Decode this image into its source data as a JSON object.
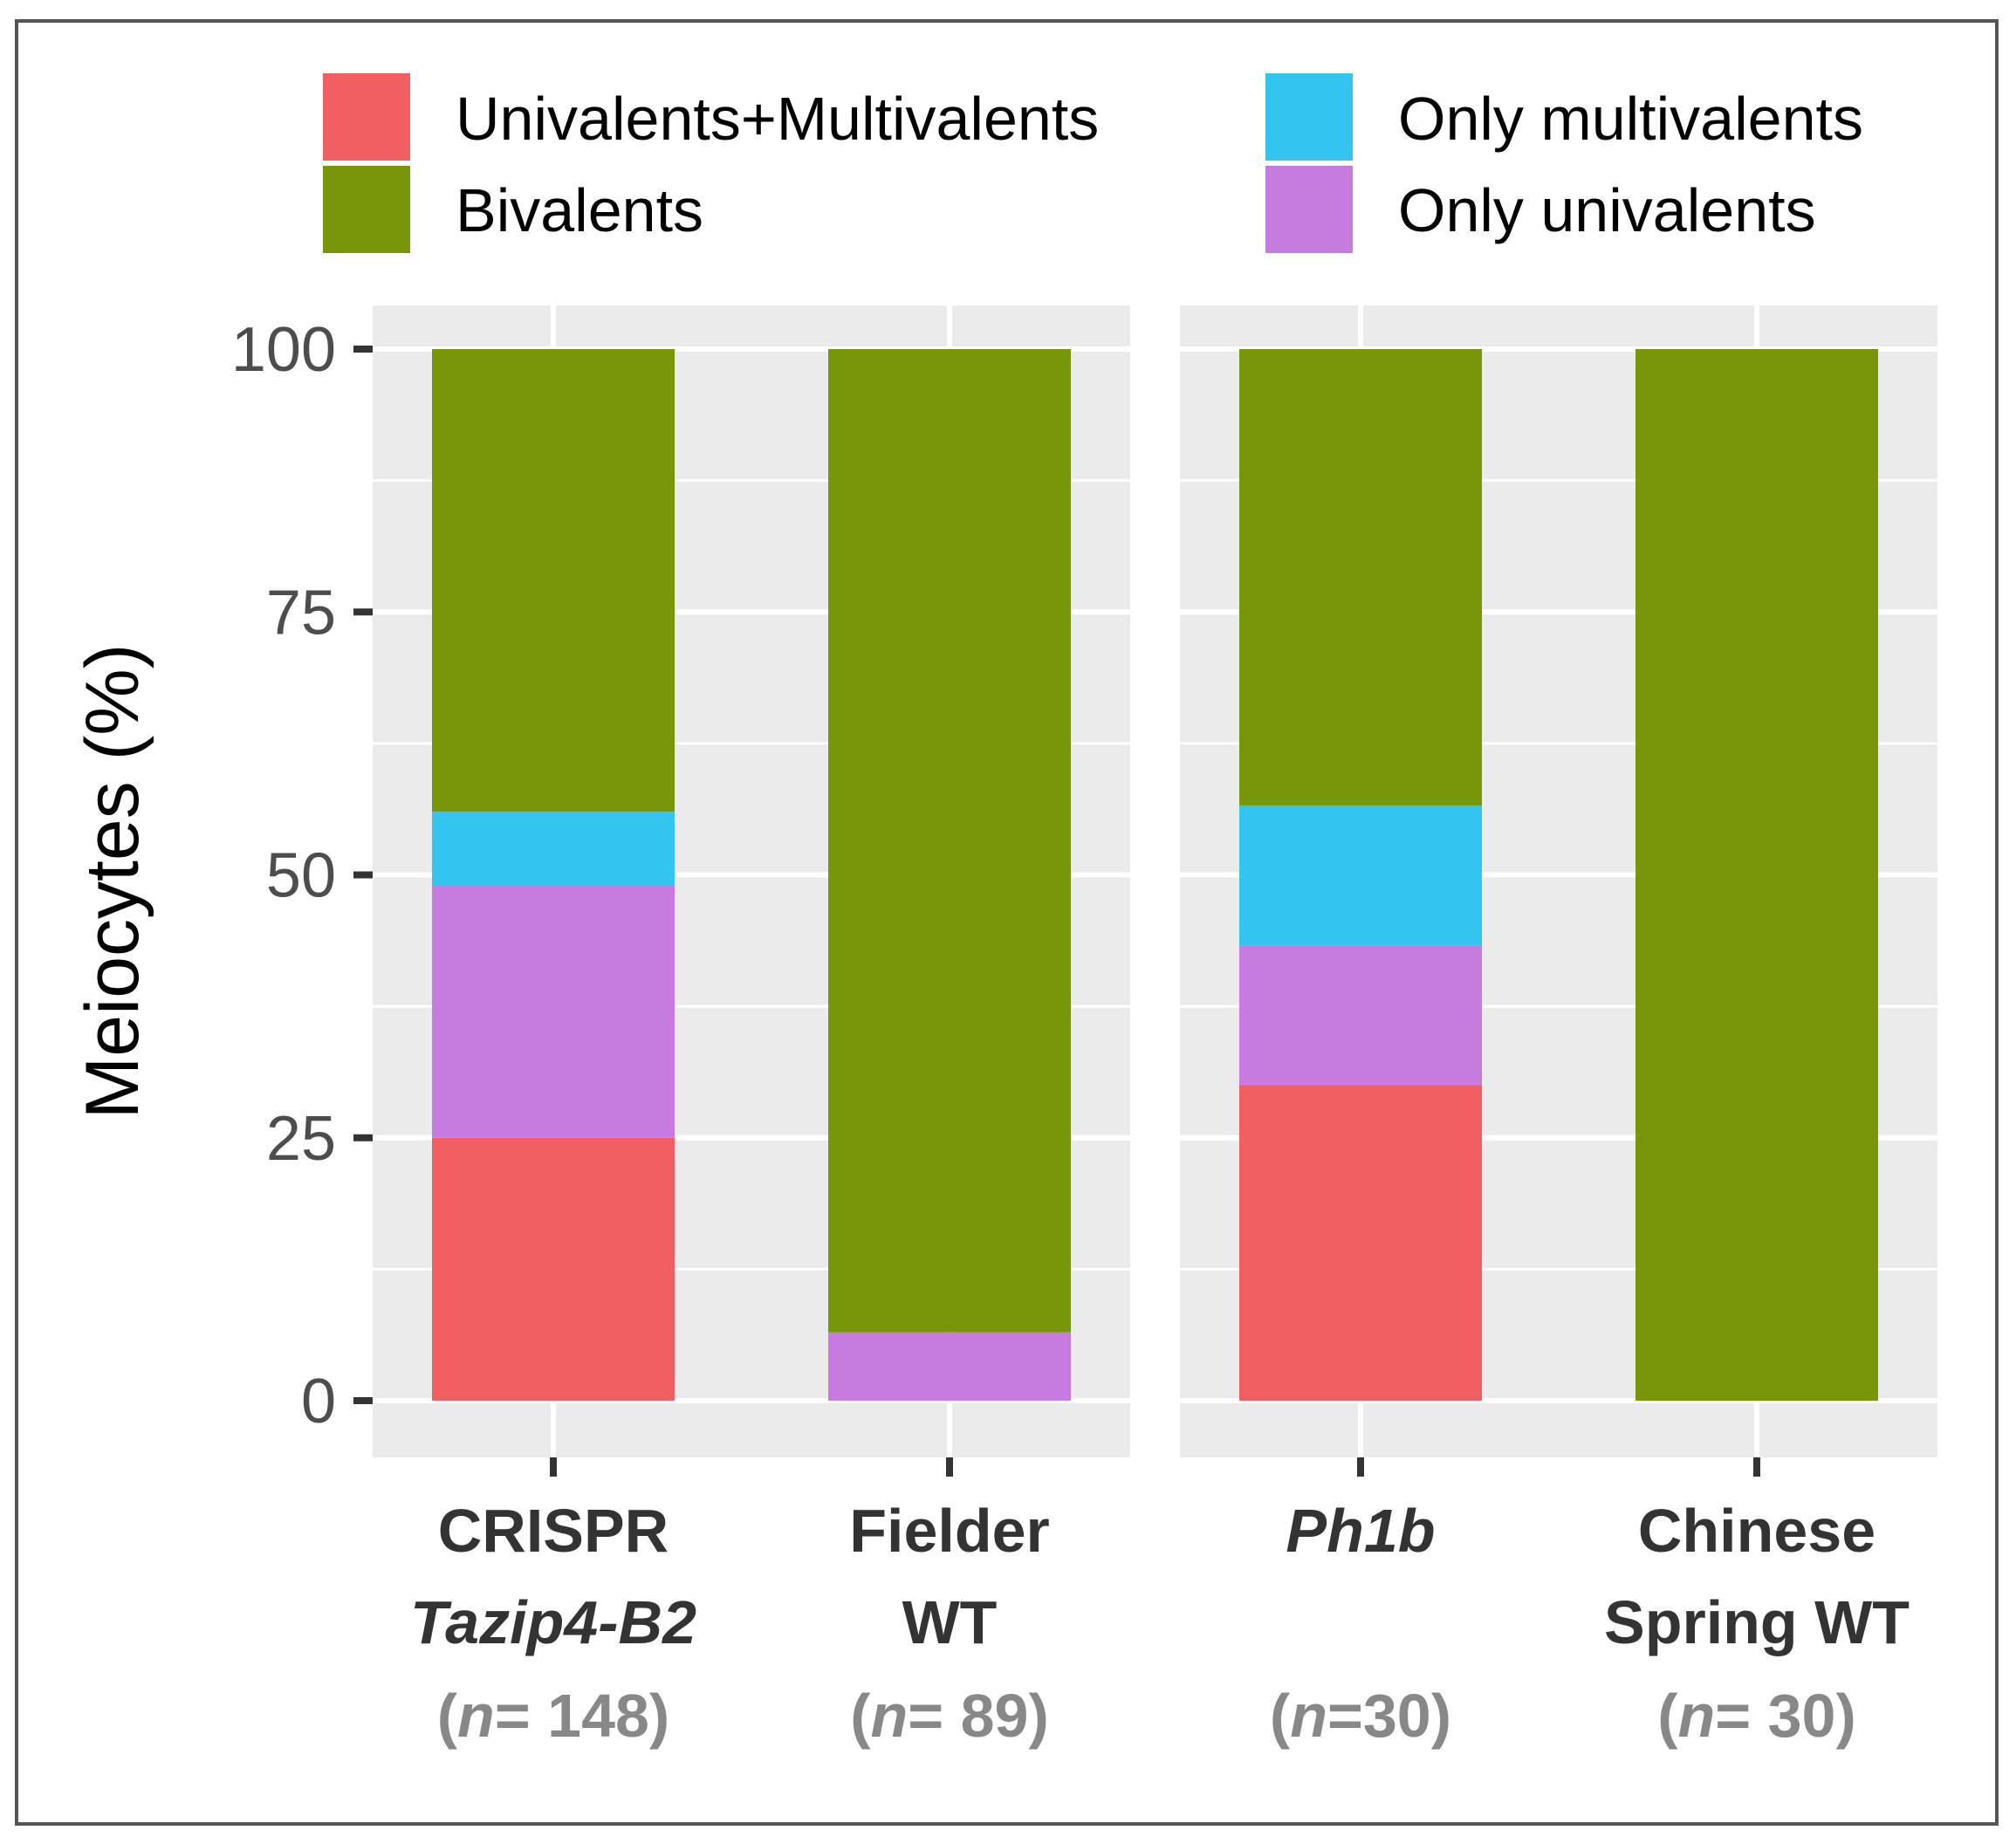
{
  "chart_data": {
    "type": "bar",
    "stacked": true,
    "ylabel": "Meiocytes (%)",
    "xlabel": "",
    "ylim": [
      0,
      100
    ],
    "yticks": [
      "0",
      "25",
      "50",
      "75",
      "100"
    ],
    "grid": true,
    "legend_position": "top",
    "legend": [
      {
        "name": "Univalents+Multivalents",
        "color": "#F15F62"
      },
      {
        "name": "Bivalents",
        "color": "#779609"
      },
      {
        "name": "Only multivalents",
        "color": "#33C4EF"
      },
      {
        "name": "Only univalents",
        "color": "#C77AE0"
      }
    ],
    "panels": [
      {
        "categories": [
          {
            "lines": [
              {
                "text": "CRISPR",
                "italic": false
              },
              {
                "text": "Tazip4-B2",
                "italic": true
              }
            ],
            "n_prefix": "(",
            "n_italic": "n",
            "n_suffix": "= 148)"
          },
          {
            "lines": [
              {
                "text": "Fielder",
                "italic": false
              },
              {
                "text": "WT",
                "italic": false
              }
            ],
            "n_prefix": "(",
            "n_italic": "n",
            "n_suffix": "= 89)"
          }
        ],
        "stack_order": [
          "Univalents+Multivalents",
          "Only univalents",
          "Only multivalents",
          "Bivalents"
        ],
        "values": {
          "Univalents+Multivalents": [
            25,
            0
          ],
          "Only univalents": [
            24,
            6.5
          ],
          "Only multivalents": [
            7,
            0
          ],
          "Bivalents": [
            44,
            93.5
          ]
        }
      },
      {
        "categories": [
          {
            "lines": [
              {
                "text": "Ph1b",
                "italic": true
              }
            ],
            "n_prefix": "(",
            "n_italic": "n",
            "n_suffix": "=30)"
          },
          {
            "lines": [
              {
                "text": "Chinese",
                "italic": false
              },
              {
                "text": "Spring WT",
                "italic": false
              }
            ],
            "n_prefix": "(",
            "n_italic": "n",
            "n_suffix": "= 30)"
          }
        ],
        "stack_order": [
          "Univalents+Multivalents",
          "Only univalents",
          "Only multivalents",
          "Bivalents"
        ],
        "values": {
          "Univalents+Multivalents": [
            30,
            0
          ],
          "Only univalents": [
            13.3,
            0
          ],
          "Only multivalents": [
            13.3,
            0
          ],
          "Bivalents": [
            43.4,
            100
          ]
        }
      }
    ]
  }
}
